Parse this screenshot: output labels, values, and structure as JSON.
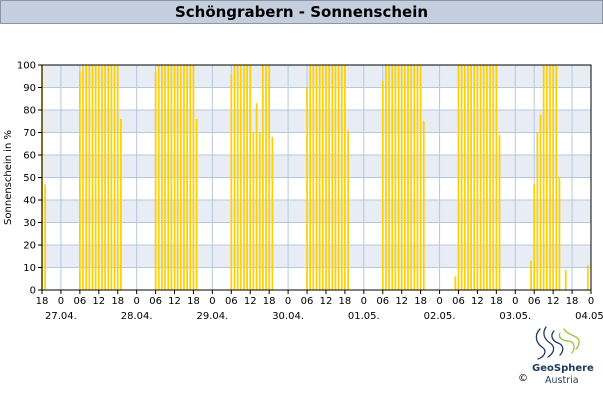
{
  "header": {
    "title": "Schöngrabern - Sonnenschein"
  },
  "chart_data": {
    "type": "bar",
    "title": "Schöngrabern - Sonnenschein",
    "xlabel": "",
    "ylabel": "Sonnenschein in %",
    "ylim": [
      0,
      100
    ],
    "yticks": [
      0,
      10,
      20,
      30,
      40,
      50,
      60,
      70,
      80,
      90,
      100
    ],
    "x_unit": "hour",
    "x_start": "2025-04-27T18:00",
    "x_end": "2025-05-04T24:00",
    "hour_tick_labels": [
      "18",
      "0",
      "06",
      "12",
      "18",
      "0",
      "06",
      "12",
      "18",
      "0",
      "06",
      "12",
      "18",
      "0",
      "06",
      "12",
      "18",
      "0",
      "06",
      "12",
      "18",
      "0",
      "06",
      "12",
      "18",
      "0",
      "06",
      "12",
      "18",
      "0",
      "06"
    ],
    "date_labels": [
      "27.04.",
      "28.04.",
      "29.04.",
      "30.04.",
      "01.05.",
      "02.05.",
      "03.05.",
      "04.05."
    ],
    "grid": true,
    "bar_color": "#ffd000",
    "stripe_color": "#e8ecf4",
    "grid_color": "#b8c8dc",
    "series": [
      {
        "points": [
          [
            "2025-04-27T18:00",
            100
          ],
          [
            "2025-04-27T19:00",
            47
          ],
          [
            "2025-04-28T06:00",
            97
          ],
          [
            "2025-04-28T07:00",
            100
          ],
          [
            "2025-04-28T08:00",
            100
          ],
          [
            "2025-04-28T09:00",
            100
          ],
          [
            "2025-04-28T10:00",
            100
          ],
          [
            "2025-04-28T11:00",
            100
          ],
          [
            "2025-04-28T12:00",
            100
          ],
          [
            "2025-04-28T13:00",
            100
          ],
          [
            "2025-04-28T14:00",
            100
          ],
          [
            "2025-04-28T15:00",
            100
          ],
          [
            "2025-04-28T16:00",
            100
          ],
          [
            "2025-04-28T17:00",
            100
          ],
          [
            "2025-04-28T18:00",
            100
          ],
          [
            "2025-04-28T19:00",
            76
          ],
          [
            "2025-04-29T06:00",
            97
          ],
          [
            "2025-04-29T07:00",
            100
          ],
          [
            "2025-04-29T08:00",
            100
          ],
          [
            "2025-04-29T09:00",
            100
          ],
          [
            "2025-04-29T10:00",
            100
          ],
          [
            "2025-04-29T11:00",
            100
          ],
          [
            "2025-04-29T12:00",
            100
          ],
          [
            "2025-04-29T13:00",
            100
          ],
          [
            "2025-04-29T14:00",
            100
          ],
          [
            "2025-04-29T15:00",
            100
          ],
          [
            "2025-04-29T16:00",
            100
          ],
          [
            "2025-04-29T17:00",
            100
          ],
          [
            "2025-04-29T18:00",
            100
          ],
          [
            "2025-04-29T19:00",
            76
          ],
          [
            "2025-04-30T06:00",
            96
          ],
          [
            "2025-04-30T07:00",
            100
          ],
          [
            "2025-04-30T08:00",
            100
          ],
          [
            "2025-04-30T09:00",
            100
          ],
          [
            "2025-04-30T10:00",
            100
          ],
          [
            "2025-04-30T11:00",
            100
          ],
          [
            "2025-04-30T12:00",
            100
          ],
          [
            "2025-04-30T13:00",
            70
          ],
          [
            "2025-04-30T14:00",
            83
          ],
          [
            "2025-04-30T15:00",
            70
          ],
          [
            "2025-04-30T16:00",
            100
          ],
          [
            "2025-04-30T17:00",
            100
          ],
          [
            "2025-04-30T18:00",
            100
          ],
          [
            "2025-04-30T19:00",
            68
          ],
          [
            "2025-05-01T06:00",
            90
          ],
          [
            "2025-05-01T07:00",
            100
          ],
          [
            "2025-05-01T08:00",
            100
          ],
          [
            "2025-05-01T09:00",
            100
          ],
          [
            "2025-05-01T10:00",
            100
          ],
          [
            "2025-05-01T11:00",
            100
          ],
          [
            "2025-05-01T12:00",
            100
          ],
          [
            "2025-05-01T13:00",
            100
          ],
          [
            "2025-05-01T14:00",
            100
          ],
          [
            "2025-05-01T15:00",
            100
          ],
          [
            "2025-05-01T16:00",
            100
          ],
          [
            "2025-05-01T17:00",
            100
          ],
          [
            "2025-05-01T18:00",
            100
          ],
          [
            "2025-05-01T19:00",
            71
          ],
          [
            "2025-05-02T06:00",
            93
          ],
          [
            "2025-05-02T07:00",
            100
          ],
          [
            "2025-05-02T08:00",
            100
          ],
          [
            "2025-05-02T09:00",
            100
          ],
          [
            "2025-05-02T10:00",
            100
          ],
          [
            "2025-05-02T11:00",
            100
          ],
          [
            "2025-05-02T12:00",
            100
          ],
          [
            "2025-05-02T13:00",
            100
          ],
          [
            "2025-05-02T14:00",
            100
          ],
          [
            "2025-05-02T15:00",
            100
          ],
          [
            "2025-05-02T16:00",
            100
          ],
          [
            "2025-05-02T17:00",
            100
          ],
          [
            "2025-05-02T18:00",
            100
          ],
          [
            "2025-05-02T19:00",
            75
          ],
          [
            "2025-05-03T05:00",
            6
          ],
          [
            "2025-05-03T06:00",
            100
          ],
          [
            "2025-05-03T07:00",
            100
          ],
          [
            "2025-05-03T08:00",
            100
          ],
          [
            "2025-05-03T09:00",
            100
          ],
          [
            "2025-05-03T10:00",
            100
          ],
          [
            "2025-05-03T11:00",
            100
          ],
          [
            "2025-05-03T12:00",
            100
          ],
          [
            "2025-05-03T13:00",
            100
          ],
          [
            "2025-05-03T14:00",
            100
          ],
          [
            "2025-05-03T15:00",
            100
          ],
          [
            "2025-05-03T16:00",
            100
          ],
          [
            "2025-05-03T17:00",
            100
          ],
          [
            "2025-05-03T18:00",
            100
          ],
          [
            "2025-05-03T19:00",
            69
          ],
          [
            "2025-05-04T05:00",
            13
          ],
          [
            "2025-05-04T06:00",
            47
          ],
          [
            "2025-05-04T07:00",
            70
          ],
          [
            "2025-05-04T08:00",
            78
          ],
          [
            "2025-05-04T09:00",
            100
          ],
          [
            "2025-05-04T10:00",
            100
          ],
          [
            "2025-05-04T11:00",
            100
          ],
          [
            "2025-05-04T12:00",
            100
          ],
          [
            "2025-05-04T13:00",
            100
          ],
          [
            "2025-05-04T14:00",
            50
          ],
          [
            "2025-05-04T16:00",
            9
          ],
          [
            "2025-05-04T23:00",
            11
          ]
        ]
      }
    ]
  },
  "footer": {
    "logo_name": "GeoSphere",
    "logo_sub": "Austria",
    "copyright": "©"
  }
}
